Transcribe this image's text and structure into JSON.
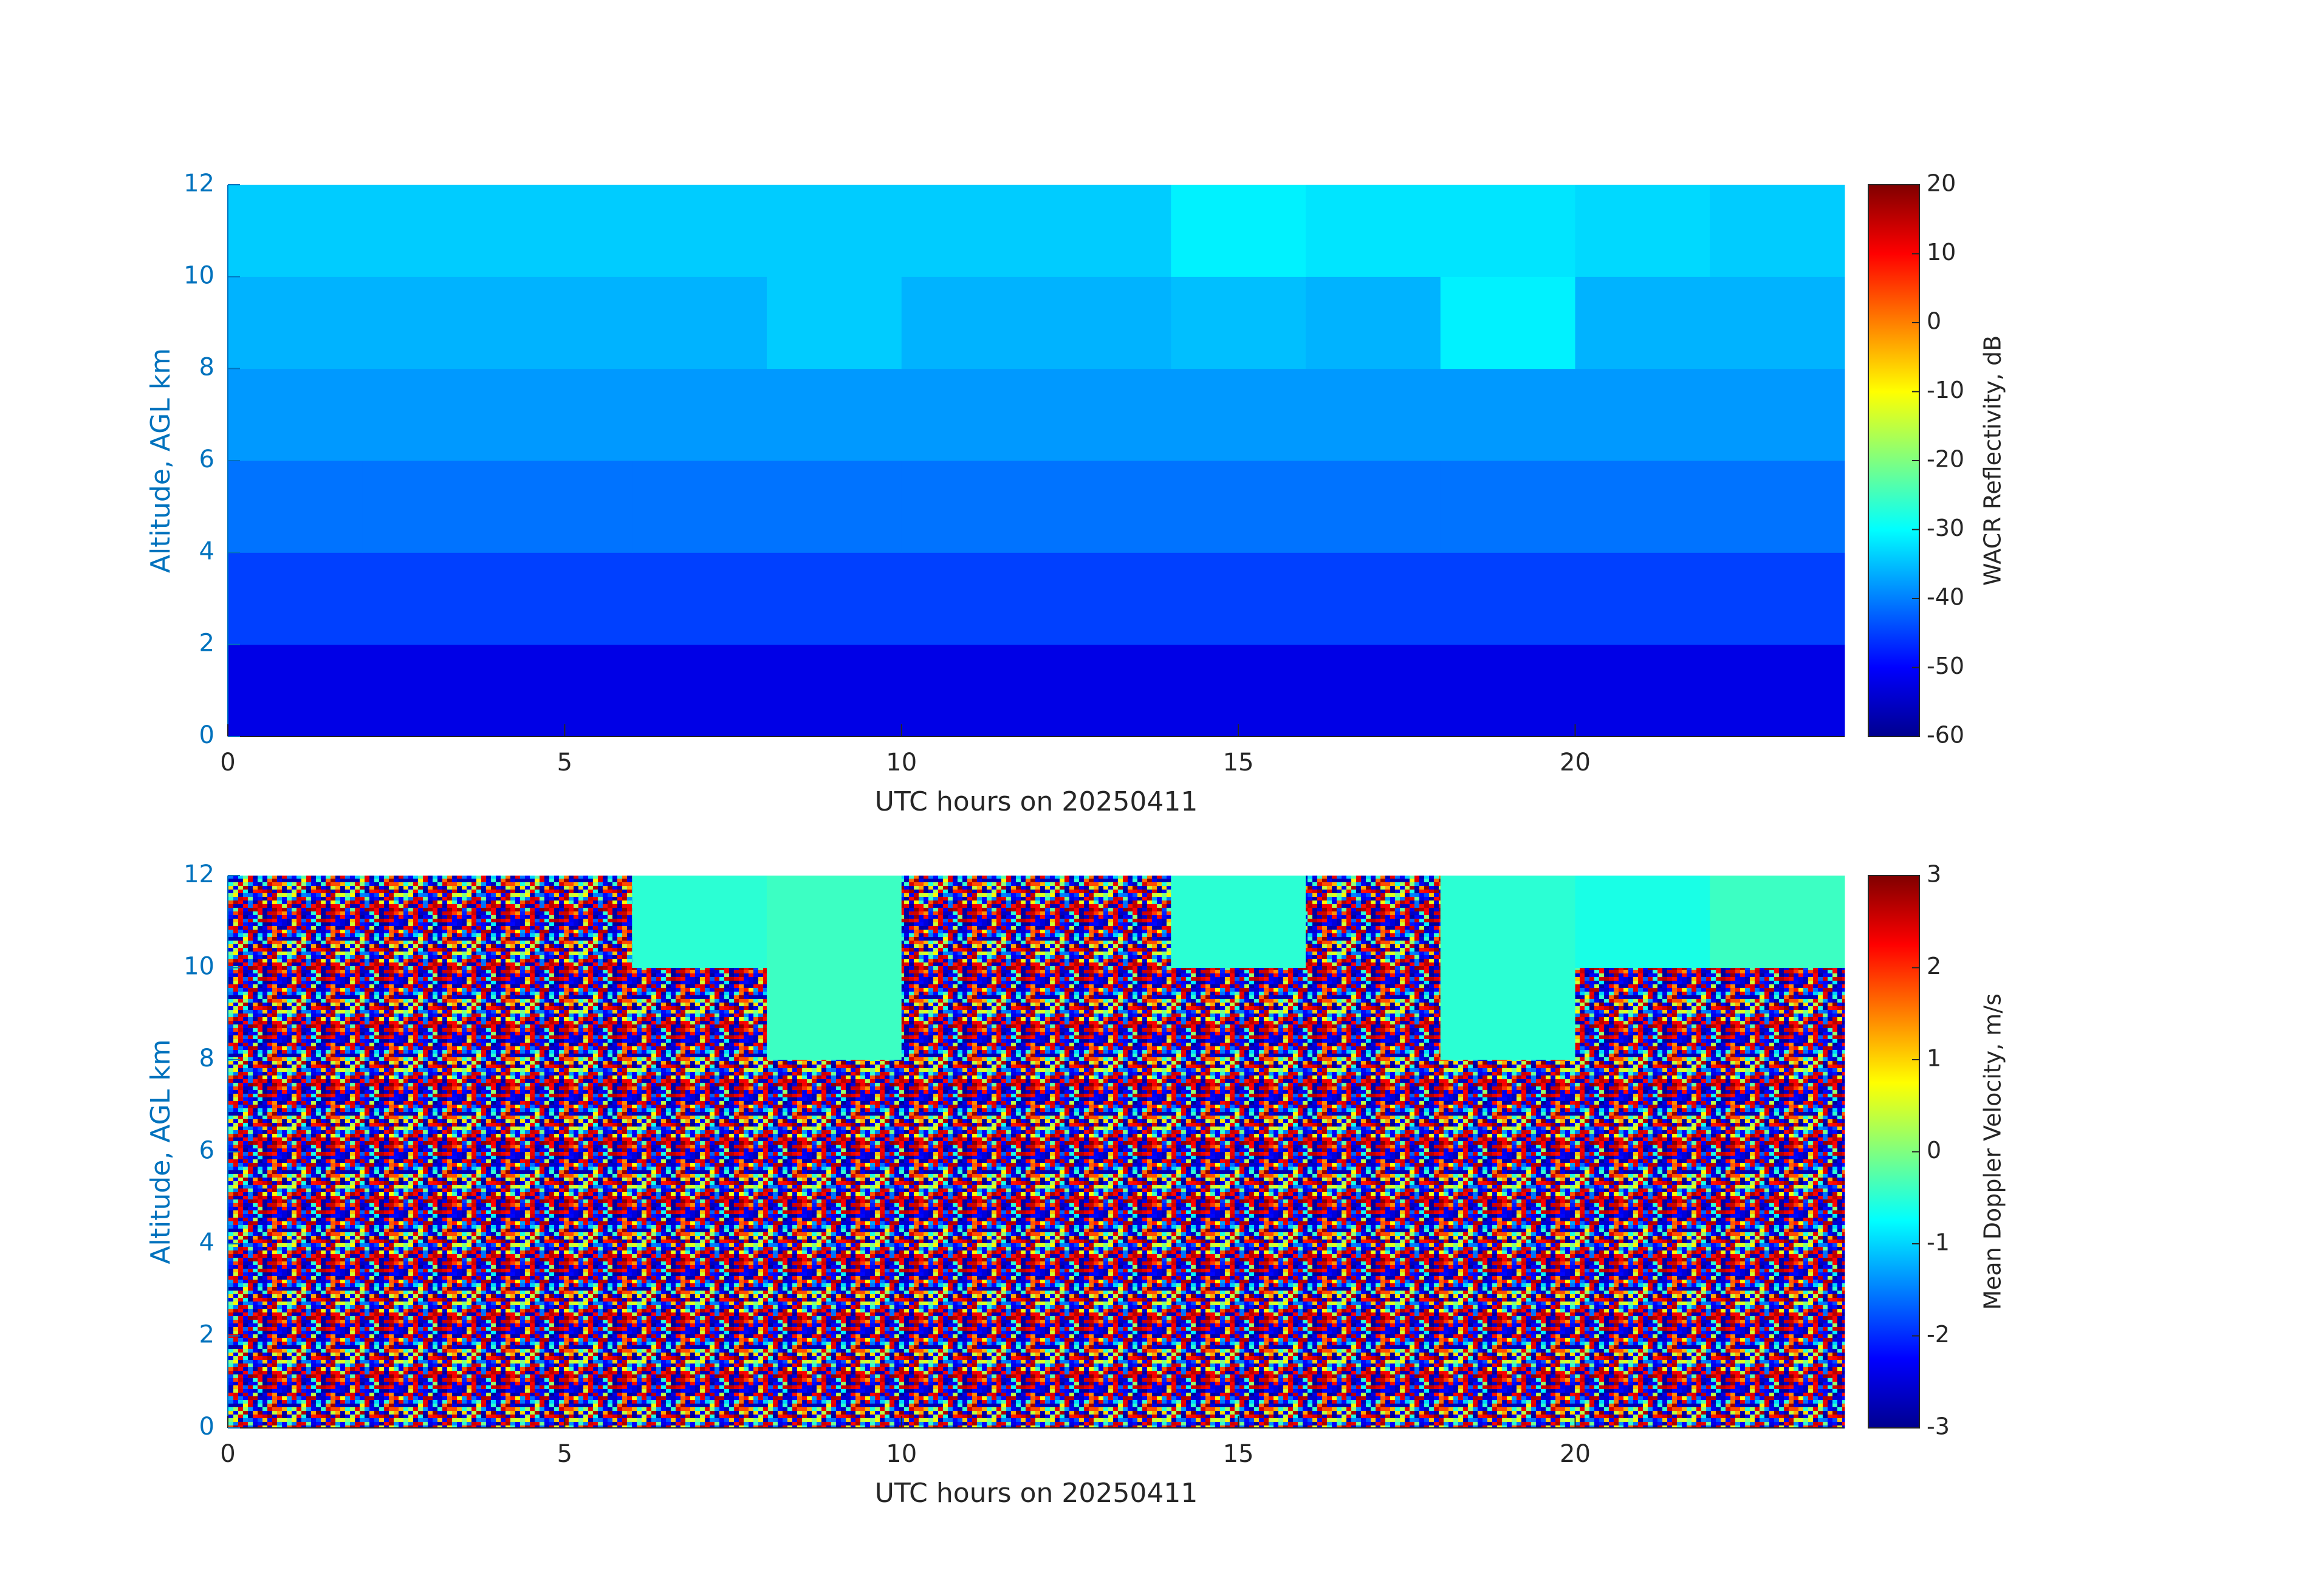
{
  "chart_data": [
    {
      "type": "heatmap",
      "colormap": "jet",
      "x_edges": [
        0,
        2,
        4,
        6,
        8,
        10,
        12,
        14,
        16,
        18,
        20,
        22,
        24
      ],
      "y_edges": [
        0,
        2,
        4,
        6,
        8,
        10,
        12
      ],
      "z": [
        [
          -52,
          -52,
          -52,
          -52,
          -52,
          -52,
          -52,
          -52,
          -52,
          -52,
          -52,
          -52
        ],
        [
          -45,
          -45,
          -45,
          -45,
          -45,
          -45,
          -45,
          -45,
          -45,
          -45,
          -45,
          -45
        ],
        [
          -41,
          -41,
          -41,
          -41,
          -41,
          -41,
          -41,
          -41,
          -41,
          -41,
          -41,
          -41
        ],
        [
          -38,
          -38,
          -38,
          -38,
          -38,
          -38,
          -38,
          -38,
          -38,
          -38,
          -38,
          -38
        ],
        [
          -36,
          -36,
          -36,
          -36,
          -34,
          -36,
          -36,
          -35,
          -36,
          -31,
          -36,
          -36
        ],
        [
          -34,
          -34,
          -34,
          -34,
          -34,
          -34,
          -34,
          -31,
          -32,
          -32,
          -33,
          -34
        ]
      ],
      "xlim": [
        0,
        24
      ],
      "xticks": [
        0,
        5,
        10,
        15,
        20
      ],
      "ylim": [
        0,
        12
      ],
      "yticks": [
        0,
        2,
        4,
        6,
        8,
        10,
        12
      ],
      "xlabel": "UTC hours on 20250411",
      "ylabel": "Altitude, AGL km",
      "colorbar_label": "WACR Reflectivity, dB",
      "clim": [
        -60,
        20
      ],
      "cticks": [
        -60,
        -50,
        -40,
        -30,
        -20,
        -10,
        0,
        10,
        20
      ]
    },
    {
      "type": "heatmap",
      "colormap": "jet",
      "x_edges": [
        0,
        2,
        4,
        6,
        8,
        10,
        12,
        14,
        16,
        18,
        20,
        22,
        24
      ],
      "y_edges": [
        0,
        2,
        4,
        6,
        8,
        10,
        12
      ],
      "z": [
        [
          null,
          null,
          null,
          null,
          null,
          null,
          null,
          null,
          null,
          null,
          null,
          null
        ],
        [
          null,
          null,
          null,
          null,
          null,
          null,
          null,
          null,
          null,
          null,
          null,
          null
        ],
        [
          null,
          null,
          null,
          null,
          null,
          null,
          null,
          null,
          null,
          null,
          null,
          null
        ],
        [
          null,
          null,
          null,
          null,
          null,
          null,
          null,
          null,
          null,
          null,
          null,
          null
        ],
        [
          null,
          null,
          null,
          null,
          -0.4,
          null,
          null,
          null,
          null,
          -0.5,
          null,
          null
        ],
        [
          null,
          null,
          null,
          -0.5,
          -0.4,
          null,
          null,
          -0.5,
          null,
          -0.5,
          -0.6,
          -0.4
        ]
      ],
      "xlim": [
        0,
        24
      ],
      "xticks": [
        0,
        5,
        10,
        15,
        20
      ],
      "ylim": [
        0,
        12
      ],
      "yticks": [
        0,
        2,
        4,
        6,
        8,
        10,
        12
      ],
      "xlabel": "UTC hours on 20250411",
      "ylabel": "Altitude, AGL km",
      "colorbar_label": "Mean Doppler Velocity, m/s",
      "clim": [
        -3,
        3
      ],
      "cticks": [
        -3,
        -2,
        -1,
        0,
        1,
        2,
        3
      ]
    }
  ]
}
